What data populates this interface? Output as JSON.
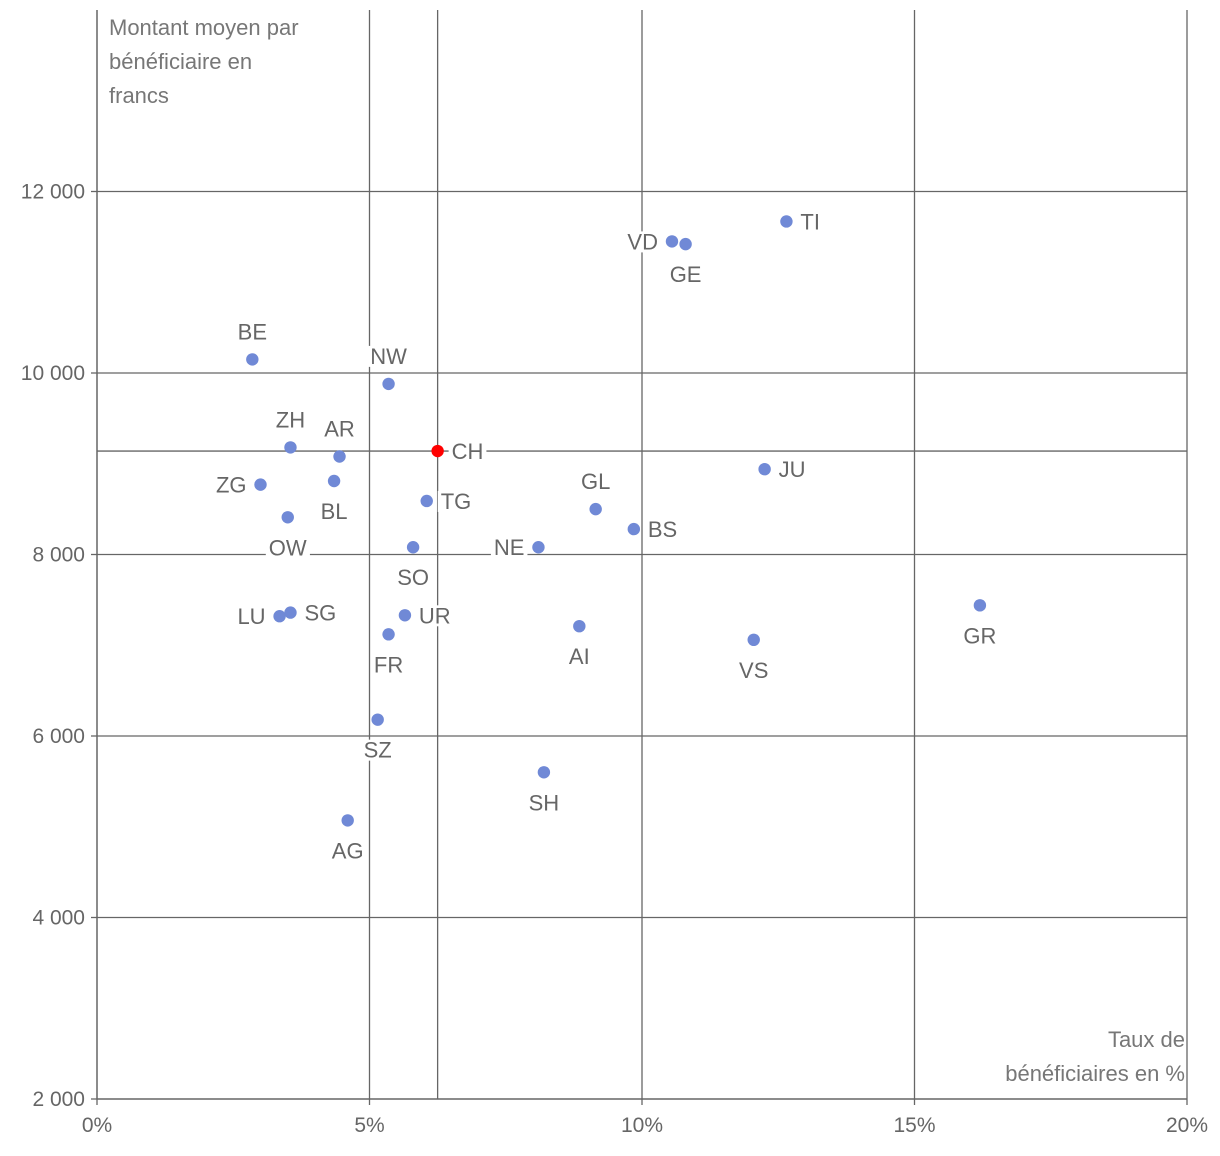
{
  "chart_data": {
    "type": "scatter",
    "ylabel": [
      "Montant moyen par",
      "bénéficiaire en",
      "francs"
    ],
    "xlabel": [
      "Taux de",
      "bénéficiaires en %"
    ],
    "xlim": [
      0,
      20
    ],
    "ylim": [
      2000,
      14000
    ],
    "x_ticks": [
      0,
      5,
      10,
      15,
      20
    ],
    "x_tick_labels": [
      "0%",
      "5%",
      "10%",
      "15%",
      "20%"
    ],
    "y_ticks": [
      2000,
      4000,
      6000,
      8000,
      10000,
      12000
    ],
    "y_tick_labels": [
      "2 000",
      "4 000",
      "6 000",
      "8 000",
      "10 000",
      "12 000"
    ],
    "grid": true,
    "reference_lines": {
      "x": 6.25,
      "y": 9140
    },
    "colors": {
      "point": "#7089d6",
      "highlight": "#ff0000",
      "grid": "#666666",
      "text": "#666666"
    },
    "points": [
      {
        "label": "BE",
        "x": 2.85,
        "y": 10150,
        "pos": "above"
      },
      {
        "label": "NW",
        "x": 5.35,
        "y": 9880,
        "pos": "above"
      },
      {
        "label": "ZH",
        "x": 3.55,
        "y": 9180,
        "pos": "above"
      },
      {
        "label": "AR",
        "x": 4.45,
        "y": 9080,
        "pos": "above"
      },
      {
        "label": "CH",
        "x": 6.25,
        "y": 9140,
        "pos": "right",
        "highlight": true
      },
      {
        "label": "ZG",
        "x": 3.0,
        "y": 8770,
        "pos": "left"
      },
      {
        "label": "BL",
        "x": 4.35,
        "y": 8810,
        "pos": "below"
      },
      {
        "label": "TG",
        "x": 6.05,
        "y": 8590,
        "pos": "right"
      },
      {
        "label": "OW",
        "x": 3.5,
        "y": 8410,
        "pos": "below"
      },
      {
        "label": "SO",
        "x": 5.8,
        "y": 8080,
        "pos": "below"
      },
      {
        "label": "NE",
        "x": 8.1,
        "y": 8080,
        "pos": "left"
      },
      {
        "label": "GL",
        "x": 9.15,
        "y": 8500,
        "pos": "above"
      },
      {
        "label": "BS",
        "x": 9.85,
        "y": 8280,
        "pos": "right"
      },
      {
        "label": "JU",
        "x": 12.25,
        "y": 8940,
        "pos": "right"
      },
      {
        "label": "TI",
        "x": 12.65,
        "y": 11670,
        "pos": "right"
      },
      {
        "label": "VD",
        "x": 10.55,
        "y": 11450,
        "pos": "left"
      },
      {
        "label": "GE",
        "x": 10.8,
        "y": 11420,
        "pos": "below"
      },
      {
        "label": "LU",
        "x": 3.35,
        "y": 7320,
        "pos": "left"
      },
      {
        "label": "SG",
        "x": 3.55,
        "y": 7360,
        "pos": "right"
      },
      {
        "label": "UR",
        "x": 5.65,
        "y": 7330,
        "pos": "right"
      },
      {
        "label": "FR",
        "x": 5.35,
        "y": 7120,
        "pos": "below"
      },
      {
        "label": "AI",
        "x": 8.85,
        "y": 7210,
        "pos": "below"
      },
      {
        "label": "VS",
        "x": 12.05,
        "y": 7060,
        "pos": "below"
      },
      {
        "label": "GR",
        "x": 16.2,
        "y": 7440,
        "pos": "below"
      },
      {
        "label": "SZ",
        "x": 5.15,
        "y": 6180,
        "pos": "below"
      },
      {
        "label": "SH",
        "x": 8.2,
        "y": 5600,
        "pos": "below"
      },
      {
        "label": "AG",
        "x": 4.6,
        "y": 5070,
        "pos": "below"
      }
    ]
  }
}
